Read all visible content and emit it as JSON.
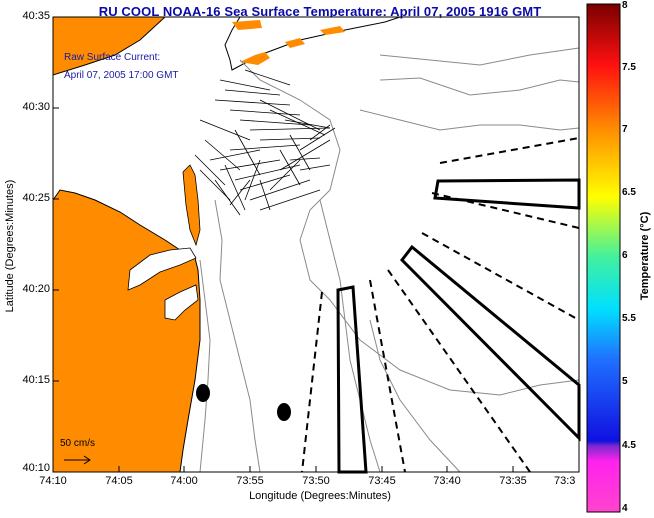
{
  "title": "RU COOL  NOAA-16  Sea Surface Temperature:  April 07, 2005 1916 GMT",
  "map": {
    "xlabel": "Longitude (Degrees:Minutes)",
    "ylabel": "Latitude (Degrees:Minutes)",
    "lat_ticks": [
      "40:35",
      "40:30",
      "40:25",
      "40:20",
      "40:15",
      "40:10"
    ],
    "lon_ticks": [
      "74:10",
      "74:05",
      "74:00",
      "73:55",
      "73:50",
      "73:45",
      "73:40",
      "73:35",
      "73:3"
    ],
    "legend_line1": "Raw Surface Current:",
    "legend_line2": "April 07, 2005 17:00 GMT",
    "scale_label": "50 cm/s",
    "land_color": "#ff8c00",
    "text_color": "#0a0aa8"
  },
  "colorbar": {
    "label": "Temperature (°C)",
    "ticks": [
      "8",
      "7.5",
      "7",
      "6.5",
      "6",
      "5.5",
      "5",
      "4.5",
      "4"
    ],
    "min": 4,
    "max": 8
  }
}
